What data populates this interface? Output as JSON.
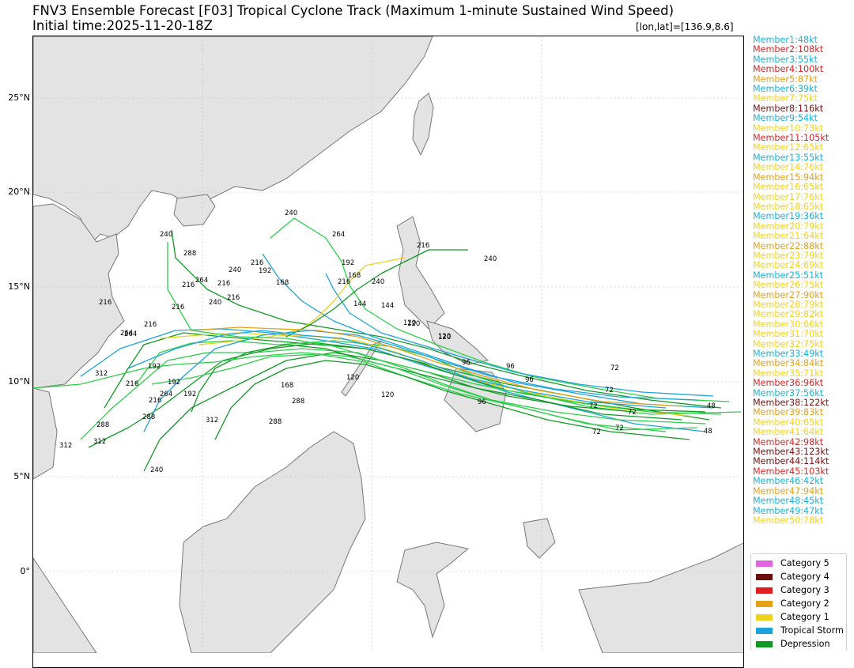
{
  "header": {
    "title": "FNV3 Ensemble Forecast [F03] Tropical Cyclone Track (Maximum 1-minute Sustained Wind Speed)",
    "initial_time": "Initial time:2025-11-20-18Z",
    "coord": "[lon,lat]=[136.9,8.6]"
  },
  "map": {
    "lat_labels": [
      "25°N",
      "20°N",
      "15°N",
      "10°N",
      "5°N",
      "0°"
    ],
    "track_labels": [
      "240",
      "264",
      "216",
      "240",
      "288",
      "240",
      "216",
      "192",
      "264",
      "216",
      "192",
      "168",
      "168",
      "240",
      "216",
      "240",
      "216",
      "240",
      "216",
      "216",
      "264",
      "216",
      "144",
      "144",
      "120",
      "120",
      "120",
      "120",
      "96",
      "96",
      "96",
      "96",
      "72",
      "72",
      "72",
      "72",
      "72",
      "72",
      "48",
      "48",
      "312",
      "288",
      "264",
      "264",
      "192",
      "216",
      "192",
      "216",
      "288",
      "288",
      "312",
      "312",
      "240",
      "288",
      "312",
      "168",
      "216",
      "192",
      "120",
      "120"
    ]
  },
  "members": [
    {
      "label": "Member1:48kt",
      "color": "#1ab4d8"
    },
    {
      "label": "Member2:108kt",
      "color": "#d62728"
    },
    {
      "label": "Member3:55kt",
      "color": "#1ab4d8"
    },
    {
      "label": "Member4:100kt",
      "color": "#d62728"
    },
    {
      "label": "Member5:87kt",
      "color": "#e6a117"
    },
    {
      "label": "Member6:39kt",
      "color": "#1ab4d8"
    },
    {
      "label": "Member7:75kt",
      "color": "#f5d31c"
    },
    {
      "label": "Member8:116kt",
      "color": "#7a1010"
    },
    {
      "label": "Member9:54kt",
      "color": "#1ab4d8"
    },
    {
      "label": "Member10:73kt",
      "color": "#f5d31c"
    },
    {
      "label": "Member11:105kt",
      "color": "#d62728"
    },
    {
      "label": "Member12:65kt",
      "color": "#f5d31c"
    },
    {
      "label": "Member13:55kt",
      "color": "#1ab4d8"
    },
    {
      "label": "Member14:76kt",
      "color": "#f5d31c"
    },
    {
      "label": "Member15:94kt",
      "color": "#e6a117"
    },
    {
      "label": "Member16:65kt",
      "color": "#f5d31c"
    },
    {
      "label": "Member17:76kt",
      "color": "#f5d31c"
    },
    {
      "label": "Member18:65kt",
      "color": "#f5d31c"
    },
    {
      "label": "Member19:36kt",
      "color": "#1ab4d8"
    },
    {
      "label": "Member20:79kt",
      "color": "#f5d31c"
    },
    {
      "label": "Member21:64kt",
      "color": "#f5d31c"
    },
    {
      "label": "Member22:88kt",
      "color": "#e6a117"
    },
    {
      "label": "Member23:79kt",
      "color": "#f5d31c"
    },
    {
      "label": "Member24:69kt",
      "color": "#f5d31c"
    },
    {
      "label": "Member25:51kt",
      "color": "#1ab4d8"
    },
    {
      "label": "Member26:75kt",
      "color": "#f5d31c"
    },
    {
      "label": "Member27:90kt",
      "color": "#e6a117"
    },
    {
      "label": "Member28:79kt",
      "color": "#f5d31c"
    },
    {
      "label": "Member29:82kt",
      "color": "#f5d31c"
    },
    {
      "label": "Member30:66kt",
      "color": "#f5d31c"
    },
    {
      "label": "Member31:70kt",
      "color": "#f5d31c"
    },
    {
      "label": "Member32:75kt",
      "color": "#f5d31c"
    },
    {
      "label": "Member33:49kt",
      "color": "#1ab4d8"
    },
    {
      "label": "Member34:84kt",
      "color": "#e6a117"
    },
    {
      "label": "Member35:71kt",
      "color": "#f5d31c"
    },
    {
      "label": "Member36:96kt",
      "color": "#d62728"
    },
    {
      "label": "Member37:56kt",
      "color": "#1ab4d8"
    },
    {
      "label": "Member38:122kt",
      "color": "#7a1010"
    },
    {
      "label": "Member39:83kt",
      "color": "#e6a117"
    },
    {
      "label": "Member40:65kt",
      "color": "#f5d31c"
    },
    {
      "label": "Member41:64kt",
      "color": "#f5d31c"
    },
    {
      "label": "Member42:98kt",
      "color": "#d62728"
    },
    {
      "label": "Member43:123kt",
      "color": "#7a1010"
    },
    {
      "label": "Member44:114kt",
      "color": "#7a1010"
    },
    {
      "label": "Member45:103kt",
      "color": "#d62728"
    },
    {
      "label": "Member46:42kt",
      "color": "#1ab4d8"
    },
    {
      "label": "Member47:94kt",
      "color": "#e6a117"
    },
    {
      "label": "Member48:45kt",
      "color": "#1ab4d8"
    },
    {
      "label": "Member49:47kt",
      "color": "#1ab4d8"
    },
    {
      "label": "Member50:78kt",
      "color": "#f5d31c"
    }
  ],
  "legend": [
    {
      "label": "Category 5",
      "color": "#e066e0"
    },
    {
      "label": "Category 4",
      "color": "#6b0f0f"
    },
    {
      "label": "Category 3",
      "color": "#e02020"
    },
    {
      "label": "Category 2",
      "color": "#e6a117"
    },
    {
      "label": "Category 1",
      "color": "#ecd21c"
    },
    {
      "label": "Tropical Storm",
      "color": "#1ca3dc"
    },
    {
      "label": "Depression",
      "color": "#139a26"
    }
  ]
}
